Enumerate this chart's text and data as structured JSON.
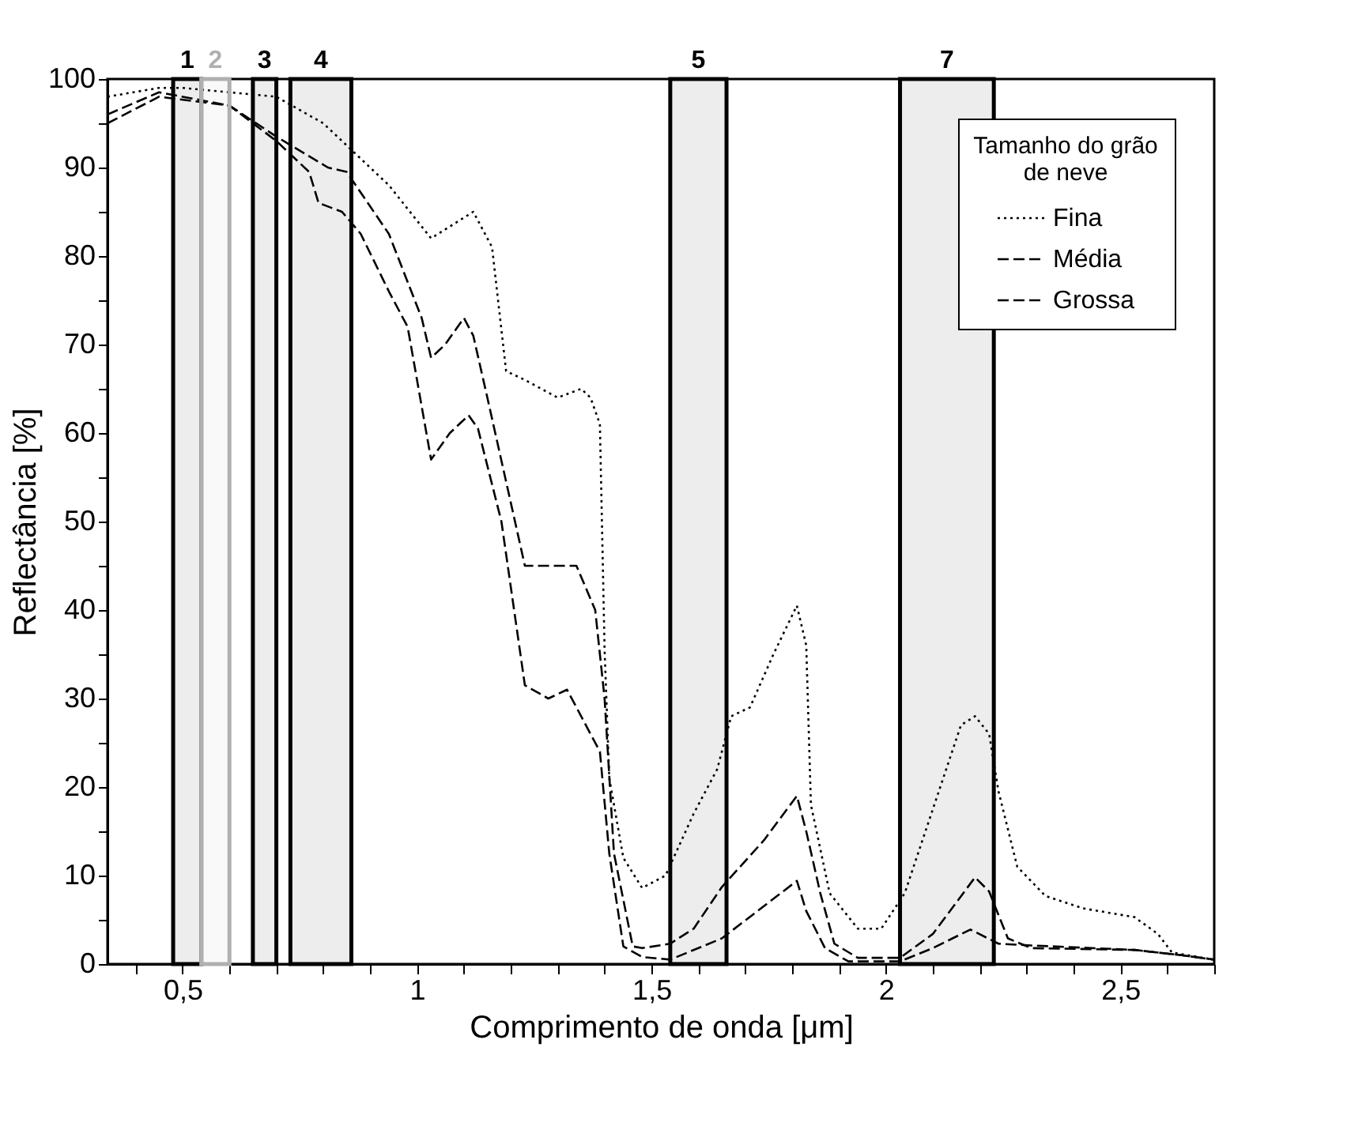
{
  "chart_data": {
    "type": "line",
    "xlabel": "Comprimento de onda [μm]",
    "ylabel": "Reflectância [%]",
    "legend_title": "Tamanho do grão\nde neve",
    "legend": "top right",
    "grid": false,
    "marker": "none",
    "xlim": [
      0.34,
      2.7
    ],
    "ylim": [
      0,
      100
    ],
    "xticks": [
      {
        "value": 0.4,
        "label": null
      },
      {
        "value": 0.5,
        "label": "0,5"
      },
      {
        "value": 0.6,
        "label": null
      },
      {
        "value": 0.7,
        "label": null
      },
      {
        "value": 0.8,
        "label": null
      },
      {
        "value": 0.9,
        "label": null
      },
      1,
      {
        "value": 1.1,
        "label": null
      },
      {
        "value": 1.2,
        "label": null
      },
      {
        "value": 1.3,
        "label": null
      },
      {
        "value": 1.4,
        "label": null
      },
      {
        "value": 1.5,
        "label": "1,5"
      },
      {
        "value": 1.6,
        "label": null
      },
      {
        "value": 1.7,
        "label": null
      },
      {
        "value": 1.8,
        "label": null
      },
      {
        "value": 1.9,
        "label": null
      },
      2,
      {
        "value": 2.1,
        "label": null
      },
      {
        "value": 2.2,
        "label": null
      },
      {
        "value": 2.3,
        "label": null
      },
      {
        "value": 2.4,
        "label": null
      },
      {
        "value": 2.5,
        "label": "2,5"
      },
      {
        "value": 2.6,
        "label": null
      },
      {
        "value": 2.7,
        "label": null
      }
    ],
    "yticks": [
      0,
      {
        "value": 5,
        "label": null
      },
      10,
      {
        "value": 15,
        "label": null
      },
      20,
      {
        "value": 25,
        "label": null
      },
      30,
      {
        "value": 35,
        "label": null
      },
      40,
      {
        "value": 45,
        "label": null
      },
      50,
      {
        "value": 55,
        "label": null
      },
      60,
      {
        "value": 65,
        "label": null
      },
      70,
      {
        "value": 75,
        "label": null
      },
      80,
      {
        "value": 85,
        "label": null
      },
      90,
      {
        "value": 95,
        "label": null
      },
      100
    ],
    "bands": [
      {
        "axis": "x",
        "from": 0.48,
        "to": 0.54,
        "label": "1",
        "color": "#000000"
      },
      {
        "axis": "x",
        "from": 0.54,
        "to": 0.6,
        "label": "2",
        "color": "#b0b0b0"
      },
      {
        "axis": "x",
        "from": 0.65,
        "to": 0.7,
        "label": "3",
        "color": "#000000"
      },
      {
        "axis": "x",
        "from": 0.73,
        "to": 0.86,
        "label": "4",
        "color": "#000000"
      },
      {
        "axis": "x",
        "from": 1.54,
        "to": 1.66,
        "label": "5",
        "color": "#000000"
      },
      {
        "axis": "x",
        "from": 2.03,
        "to": 2.23,
        "label": "7",
        "color": "#000000"
      }
    ],
    "series": [
      {
        "name": "Fina",
        "color": "#000000",
        "line_style": "dotted",
        "x": [
          0.34,
          0.45,
          0.5,
          0.6,
          0.7,
          0.8,
          0.94,
          1.03,
          1.09,
          1.12,
          1.16,
          1.19,
          1.23,
          1.3,
          1.35,
          1.37,
          1.39,
          1.4,
          1.41,
          1.44,
          1.48,
          1.53,
          1.59,
          1.64,
          1.67,
          1.71,
          1.76,
          1.81,
          1.83,
          1.84,
          1.88,
          1.94,
          1.99,
          2.04,
          2.1,
          2.16,
          2.19,
          2.22,
          2.24,
          2.28,
          2.34,
          2.42,
          2.53,
          2.58,
          2.61,
          2.7
        ],
        "values": [
          98,
          99,
          99,
          98.5,
          98,
          95,
          88,
          82,
          84,
          85,
          81,
          67,
          66,
          64,
          65,
          64,
          61,
          35.5,
          21,
          12,
          8.6,
          10,
          17,
          22,
          28,
          29,
          35,
          40.5,
          36,
          18,
          8,
          4,
          4,
          8,
          17.5,
          27,
          28,
          26,
          19.5,
          11,
          7.7,
          6.3,
          5.3,
          3.4,
          1.3,
          0.5
        ]
      },
      {
        "name": "Média",
        "color": "#000000",
        "line_style": "dashed",
        "x": [
          0.34,
          0.45,
          0.6,
          0.7,
          0.81,
          0.85,
          0.94,
          1.01,
          1.03,
          1.06,
          1.1,
          1.12,
          1.15,
          1.23,
          1.3,
          1.34,
          1.38,
          1.4,
          1.42,
          1.46,
          1.48,
          1.54,
          1.59,
          1.65,
          1.74,
          1.81,
          1.83,
          1.86,
          1.89,
          1.94,
          2.03,
          2.1,
          2.19,
          2.22,
          2.26,
          2.31,
          2.53,
          2.63,
          2.7
        ],
        "values": [
          96,
          98.5,
          97,
          93.5,
          90,
          89.5,
          82.5,
          73,
          68.5,
          70,
          73,
          71,
          64,
          45,
          45,
          45,
          40,
          30,
          12.5,
          2,
          1.8,
          2.3,
          4,
          8.7,
          14,
          19,
          15,
          8,
          2.3,
          0.7,
          0.7,
          3.4,
          9.8,
          8.2,
          2.9,
          1.8,
          1.6,
          1,
          0.5
        ]
      },
      {
        "name": "Grossa",
        "color": "#000000",
        "line_style": "dashed",
        "x": [
          0.34,
          0.45,
          0.6,
          0.7,
          0.77,
          0.79,
          0.84,
          0.88,
          0.94,
          0.98,
          1.03,
          1.07,
          1.11,
          1.13,
          1.18,
          1.23,
          1.28,
          1.32,
          1.39,
          1.41,
          1.44,
          1.48,
          1.54,
          1.65,
          1.81,
          1.83,
          1.87,
          1.92,
          2.03,
          2.1,
          2.18,
          2.24,
          2.31,
          2.53,
          2.63,
          2.7
        ],
        "values": [
          95,
          98,
          97,
          93,
          89.5,
          86,
          85,
          82.5,
          76,
          72,
          57,
          60,
          62,
          60.5,
          50,
          31.5,
          30,
          31,
          24,
          12.5,
          2,
          0.8,
          0.5,
          2.9,
          9.4,
          6,
          1.8,
          0.3,
          0.3,
          1.8,
          3.9,
          2.3,
          2.1,
          1.6,
          1,
          0.5
        ]
      }
    ]
  }
}
